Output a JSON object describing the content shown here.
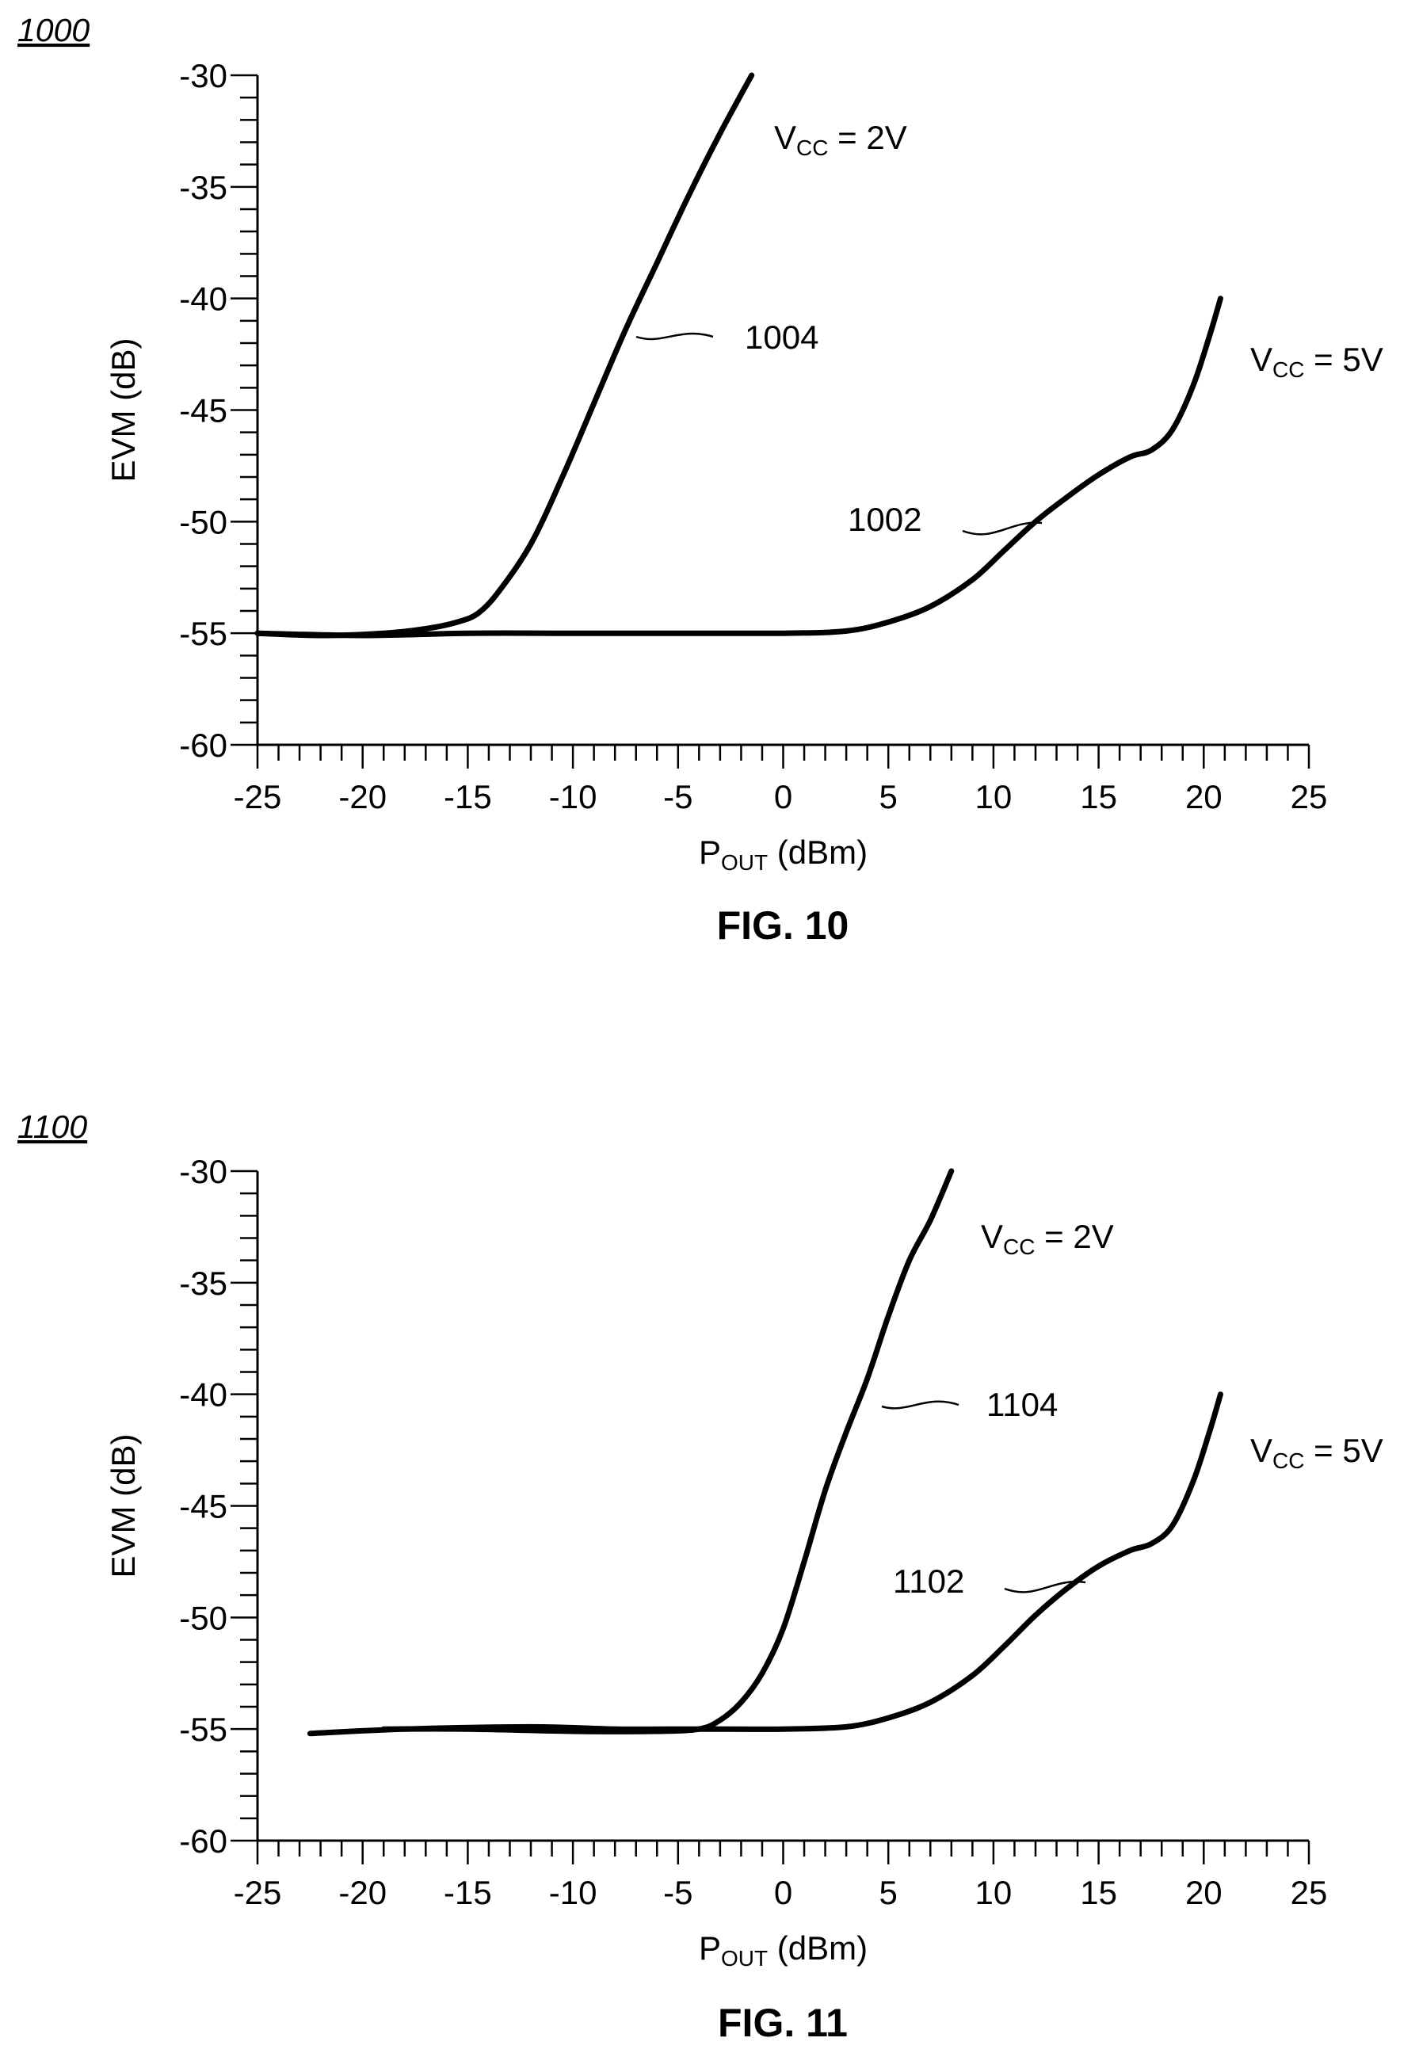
{
  "chart_data": [
    {
      "type": "line",
      "ref_number": "1000",
      "caption": "FIG. 10",
      "xlabel": {
        "main": "P",
        "sub": "OUT",
        "unit": " (dBm)"
      },
      "ylabel": "EVM (dB)",
      "xlim": [
        -25,
        25
      ],
      "ylim": [
        -60,
        -30
      ],
      "x_ticks": [
        "-25",
        "-20",
        "-15",
        "-10",
        "-5",
        "0",
        "5",
        "10",
        "15",
        "20",
        "25"
      ],
      "y_ticks": [
        "-30",
        "-35",
        "-40",
        "-45",
        "-50",
        "-55",
        "-60"
      ],
      "grid": false,
      "series": [
        {
          "label": "1004",
          "vcc": {
            "main": "V",
            "sub": "CC",
            "rest": " = 2V"
          },
          "x": [
            -25,
            -22,
            -19,
            -17,
            -15.5,
            -14.5,
            -13.5,
            -12,
            -10.5,
            -9,
            -7.5,
            -6,
            -4.5,
            -3,
            -1.5
          ],
          "y": [
            -55,
            -55.1,
            -55,
            -54.8,
            -54.5,
            -54.1,
            -53.1,
            -51.0,
            -48.0,
            -44.7,
            -41.4,
            -38.4,
            -35.4,
            -32.6,
            -30
          ]
        },
        {
          "label": "1002",
          "vcc": {
            "main": "V",
            "sub": "CC",
            "rest": " = 5V"
          },
          "x": [
            -25,
            -20,
            -15,
            -10,
            -5,
            0,
            3,
            5,
            7,
            9,
            10.5,
            12,
            13.5,
            15,
            16.5,
            17.5,
            18.5,
            19.5,
            20.3,
            20.8
          ],
          "y": [
            -55,
            -55.1,
            -55,
            -55,
            -55,
            -55,
            -54.9,
            -54.5,
            -53.8,
            -52.6,
            -51.3,
            -50.0,
            -48.9,
            -47.9,
            -47.1,
            -46.8,
            -45.9,
            -43.9,
            -41.6,
            -40
          ]
        }
      ]
    },
    {
      "type": "line",
      "ref_number": "1100",
      "caption": "FIG. 11",
      "xlabel": {
        "main": "P",
        "sub": "OUT",
        "unit": " (dBm)"
      },
      "ylabel": "EVM (dB)",
      "xlim": [
        -25,
        25
      ],
      "ylim": [
        -60,
        -30
      ],
      "x_ticks": [
        "-25",
        "-20",
        "-15",
        "-10",
        "-5",
        "0",
        "5",
        "10",
        "15",
        "20",
        "25"
      ],
      "y_ticks": [
        "-30",
        "-35",
        "-40",
        "-45",
        "-50",
        "-55",
        "-60"
      ],
      "grid": false,
      "series": [
        {
          "label": "1104",
          "vcc": {
            "main": "V",
            "sub": "CC",
            "rest": " = 2V"
          },
          "x": [
            -19,
            -15,
            -10,
            -6,
            -4,
            -3,
            -2,
            -1,
            0,
            1,
            2,
            3,
            4,
            5,
            6,
            7,
            8
          ],
          "y": [
            -55,
            -55.0,
            -55.1,
            -55.1,
            -55.0,
            -54.6,
            -53.8,
            -52.5,
            -50.5,
            -47.5,
            -44.3,
            -41.7,
            -39.3,
            -36.5,
            -34.0,
            -32.2,
            -30
          ]
        },
        {
          "label": "1102",
          "vcc": {
            "main": "V",
            "sub": "CC",
            "rest": " = 5V"
          },
          "x": [
            -22.5,
            -18,
            -12,
            -8,
            -4,
            0,
            3,
            5,
            7,
            9,
            10.5,
            12,
            13.5,
            15,
            16.5,
            17.5,
            18.5,
            19.5,
            20.3,
            20.8
          ],
          "y": [
            -55.2,
            -55.0,
            -54.9,
            -55.0,
            -55.0,
            -55.0,
            -54.9,
            -54.5,
            -53.8,
            -52.6,
            -51.3,
            -49.9,
            -48.7,
            -47.7,
            -47.0,
            -46.7,
            -45.9,
            -43.9,
            -41.6,
            -40
          ]
        }
      ]
    }
  ]
}
